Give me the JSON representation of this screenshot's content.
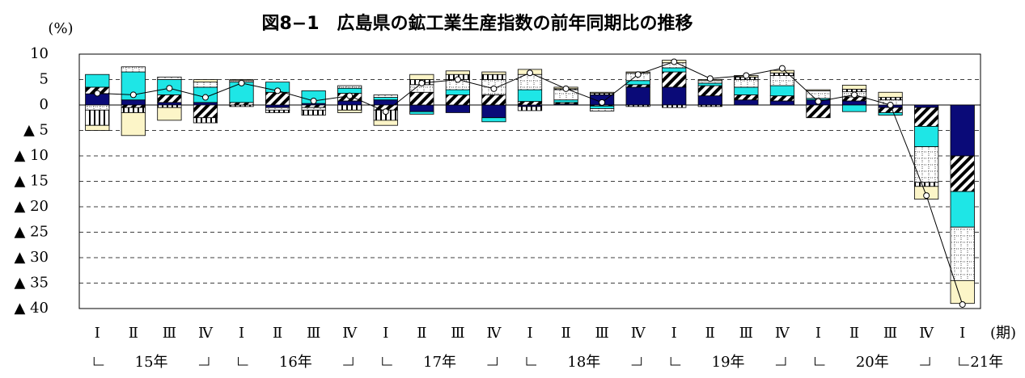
{
  "chart_data": {
    "type": "bar",
    "stacked": true,
    "title": "図8−1　広島県の鉱工業生産指数の前年同期比の推移",
    "y_unit": "(%)",
    "x_unit": "(期)",
    "categories": [
      "Ⅰ",
      "Ⅱ",
      "Ⅲ",
      "Ⅳ",
      "Ⅰ",
      "Ⅱ",
      "Ⅲ",
      "Ⅳ",
      "Ⅰ",
      "Ⅱ",
      "Ⅲ",
      "Ⅳ",
      "Ⅰ",
      "Ⅱ",
      "Ⅲ",
      "Ⅳ",
      "Ⅰ",
      "Ⅱ",
      "Ⅲ",
      "Ⅳ",
      "Ⅰ",
      "Ⅱ",
      "Ⅲ",
      "Ⅳ",
      "Ⅰ"
    ],
    "year_labels": [
      "15年",
      "16年",
      "17年",
      "18年",
      "19年",
      "20年",
      "21年"
    ],
    "ylim": [
      -40,
      10
    ],
    "yticks": [
      10,
      5,
      0,
      {
        "value": -5,
        "label": "▲ 5"
      },
      {
        "value": -10,
        "label": "▲ 10"
      },
      {
        "value": -15,
        "label": "▲ 15"
      },
      {
        "value": -20,
        "label": "▲ 20"
      },
      {
        "value": -25,
        "label": "▲ 25"
      },
      {
        "value": -30,
        "label": "▲ 30"
      },
      {
        "value": -35,
        "label": "▲ 35"
      },
      {
        "value": -40,
        "label": "▲ 40"
      }
    ],
    "grid": true,
    "series": [
      {
        "color": "#0a0a78",
        "pattern": "none",
        "values": [
          2.2,
          1,
          0.5,
          0.5,
          0,
          -0.5,
          0.3,
          0.8,
          1,
          -1.3,
          -1.5,
          -2.5,
          -0.3,
          0.2,
          2,
          3.5,
          3.5,
          1.8,
          1,
          0.8,
          1,
          0.8,
          -0.5,
          -0.5,
          -10
        ]
      },
      {
        "color": "#000000",
        "pattern": "diagonal",
        "values": [
          1.3,
          -0.5,
          1.5,
          -2.5,
          0.5,
          2.5,
          -0.5,
          1.5,
          -1,
          2.5,
          2,
          2,
          0.7,
          0.3,
          -0.2,
          0.5,
          3,
          2,
          1,
          1,
          -2.5,
          0.8,
          -1,
          -3.7,
          -7
        ]
      },
      {
        "color": "#1ee6e6",
        "pattern": "none",
        "values": [
          2.5,
          5.5,
          3,
          3,
          4,
          2,
          2.5,
          1,
          0.5,
          -0.5,
          1,
          -0.8,
          2.3,
          0.5,
          -0.5,
          0.8,
          0.8,
          0.5,
          1.5,
          2,
          0.3,
          -1.3,
          -0.5,
          -4,
          -7
        ]
      },
      {
        "color": "#000000",
        "pattern": "dotted",
        "values": [
          -1,
          1,
          0.5,
          1,
          0.3,
          -0.5,
          -0.5,
          0.5,
          0.5,
          1.5,
          2,
          3,
          3,
          2,
          -0.5,
          1.5,
          1,
          0.5,
          1.5,
          2,
          1.5,
          1,
          1,
          -7,
          -10.5
        ]
      },
      {
        "color": "#000000",
        "pattern": "vertical",
        "values": [
          -3,
          -1,
          -0.5,
          -1,
          -0.3,
          -0.5,
          -1,
          -1,
          -2,
          1,
          1,
          1,
          -0.8,
          0.2,
          0.3,
          -0.3,
          -0.5,
          -0.3,
          0.5,
          0.5,
          0,
          0.5,
          0.5,
          -0.8,
          0
        ]
      },
      {
        "color": "#fcf5c8",
        "pattern": "none",
        "values": [
          -1,
          -4.5,
          -2.5,
          0.5,
          0.2,
          0,
          0,
          -0.5,
          -1,
          1,
          0.7,
          0.5,
          1,
          0.3,
          0.2,
          0.2,
          0.5,
          0.2,
          0.3,
          0.5,
          0.2,
          0.8,
          1,
          -2.5,
          -4.5
        ]
      },
      {
        "type": "line",
        "color": "#000000",
        "values": [
          2.3,
          2,
          3.3,
          1.5,
          4.3,
          2.8,
          0.8,
          1.8,
          -1.3,
          4.3,
          5,
          3.2,
          6.3,
          3.2,
          0.5,
          6,
          8.5,
          5.2,
          5.8,
          7.2,
          0.7,
          2,
          0,
          -17.8,
          -39.2
        ]
      }
    ]
  }
}
